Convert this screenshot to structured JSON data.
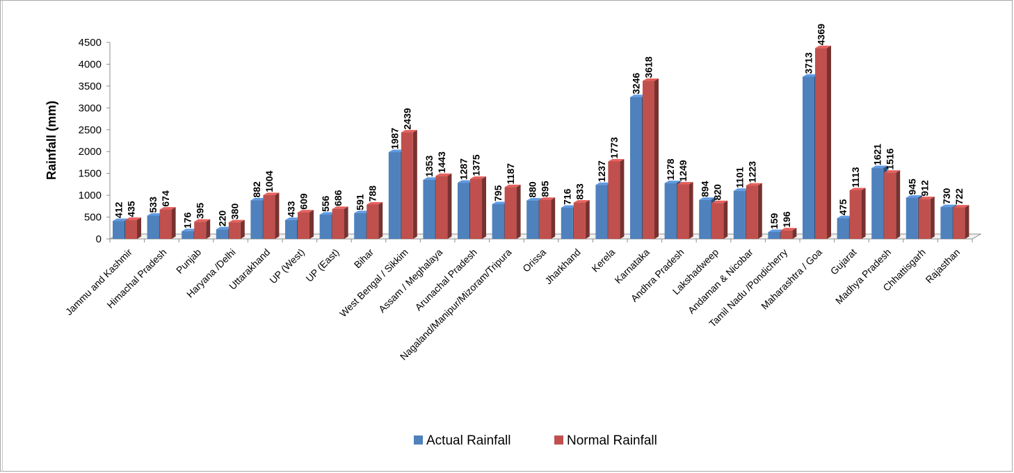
{
  "chart_data": {
    "type": "bar",
    "title": "",
    "xlabel": "",
    "ylabel": "Rainfall (mm)",
    "ylim": [
      0,
      4500
    ],
    "yticks": [
      0,
      500,
      1000,
      1500,
      2000,
      2500,
      3000,
      3500,
      4000,
      4500
    ],
    "grid": false,
    "legend_position": "bottom",
    "categories": [
      "Jammu and Kashmir",
      "Himachal Pradesh",
      "Punjab",
      "Haryana /Delhi",
      "Uttarakhand",
      "UP (West)",
      "UP (East)",
      "Bihar",
      "West Bengal / Sikkim",
      "Assam / Meghalaya",
      "Arunachal Pradesh",
      "Nagaland/Manipur/Mizoram/Tripura",
      "Orissa",
      "Jharkhand",
      "Kerela",
      "Karnataka",
      "Andhra Pradesh",
      "Lakshadweep",
      "Andaman & Nicobar",
      "Tamil Nadu /Pondicherry",
      "Maharashtra / Goa",
      "Gujarat",
      "Madhya Pradesh",
      "Chhattisgarh",
      "Rajasthan"
    ],
    "series": [
      {
        "name": "Actual Rainfall",
        "color": "#4f81bd",
        "values": [
          412,
          533,
          176,
          220,
          882,
          433,
          556,
          591,
          1987,
          1353,
          1287,
          795,
          880,
          716,
          1237,
          3246,
          1278,
          894,
          1101,
          159,
          3713,
          475,
          1621,
          945,
          730
        ]
      },
      {
        "name": "Normal Rainfall",
        "color": "#c0504d",
        "values": [
          435,
          674,
          395,
          380,
          1004,
          609,
          686,
          788,
          2439,
          1443,
          1375,
          1187,
          895,
          833,
          1773,
          3618,
          1249,
          820,
          1223,
          196,
          4369,
          1113,
          1516,
          912,
          722
        ]
      }
    ]
  }
}
